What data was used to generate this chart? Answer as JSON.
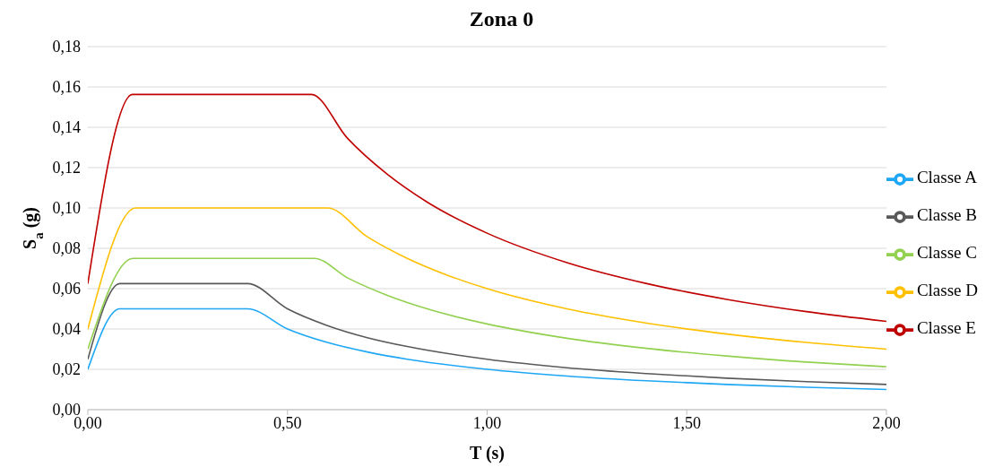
{
  "chart_data": {
    "type": "line",
    "title": "Zona 0",
    "xlabel": "T (s)",
    "ylabel": "S$_{a}$ (g)",
    "xlim": [
      0,
      2
    ],
    "xticks": [
      {
        "value": 0,
        "label": "0,00"
      },
      {
        "value": 0.5,
        "label": "0,50"
      },
      {
        "value": 1,
        "label": "1,00"
      },
      {
        "value": 1.5,
        "label": "1,50"
      },
      {
        "value": 2,
        "label": "2,00"
      }
    ],
    "ylim": [
      0,
      0.18
    ],
    "yticks": [
      {
        "value": 0,
        "label": "0,00"
      },
      {
        "value": 0.02,
        "label": "0,02"
      },
      {
        "value": 0.04,
        "label": "0,04"
      },
      {
        "value": 0.06,
        "label": "0,06"
      },
      {
        "value": 0.08,
        "label": "0,08"
      },
      {
        "value": 0.1,
        "label": "0,10"
      },
      {
        "value": 0.12,
        "label": "0,12"
      },
      {
        "value": 0.14,
        "label": "0,14"
      },
      {
        "value": 0.16,
        "label": "0,16"
      },
      {
        "value": 0.18,
        "label": "0,18"
      }
    ],
    "grid": "y",
    "legend": "right",
    "marker": "none",
    "line_style": "solid",
    "series": [
      {
        "name": "Classe A",
        "color": "#1ea7f5",
        "x": [
          0,
          0.08,
          0.4,
          0.5,
          0.6,
          0.7,
          0.8,
          1.0,
          1.2,
          1.4,
          1.6,
          1.8,
          2.0
        ],
        "values": [
          0.02,
          0.05,
          0.05,
          0.04,
          0.0333,
          0.0286,
          0.025,
          0.02,
          0.0167,
          0.0143,
          0.0125,
          0.0111,
          0.01
        ]
      },
      {
        "name": "Classe B",
        "color": "#595959",
        "x": [
          0,
          0.08,
          0.4,
          0.5,
          0.6,
          0.7,
          0.8,
          1.0,
          1.2,
          1.4,
          1.6,
          1.8,
          2.0
        ],
        "values": [
          0.025,
          0.0625,
          0.0625,
          0.05,
          0.0417,
          0.0357,
          0.0313,
          0.025,
          0.0208,
          0.0179,
          0.0156,
          0.0139,
          0.0125
        ]
      },
      {
        "name": "Classe C",
        "color": "#92d050",
        "x": [
          0,
          0.113,
          0.567,
          0.65,
          0.75,
          0.85,
          1.0,
          1.2,
          1.4,
          1.6,
          1.8,
          2.0
        ],
        "values": [
          0.03,
          0.075,
          0.075,
          0.0654,
          0.0567,
          0.05,
          0.0425,
          0.0354,
          0.0304,
          0.0266,
          0.0236,
          0.0213
        ]
      },
      {
        "name": "Classe D",
        "color": "#ffc000",
        "x": [
          0,
          0.12,
          0.6,
          0.7,
          0.8,
          0.9,
          1.0,
          1.2,
          1.4,
          1.6,
          1.8,
          2.0
        ],
        "values": [
          0.04,
          0.1,
          0.1,
          0.0857,
          0.075,
          0.0667,
          0.06,
          0.05,
          0.0429,
          0.0375,
          0.0333,
          0.03
        ]
      },
      {
        "name": "Classe E",
        "color": "#c00000",
        "x": [
          0,
          0.112,
          0.56,
          0.65,
          0.75,
          0.85,
          1.0,
          1.2,
          1.4,
          1.6,
          1.8,
          2.0
        ],
        "values": [
          0.0625,
          0.1563,
          0.1563,
          0.1346,
          0.1167,
          0.1029,
          0.0875,
          0.0729,
          0.0625,
          0.0547,
          0.0486,
          0.0438
        ]
      }
    ]
  }
}
